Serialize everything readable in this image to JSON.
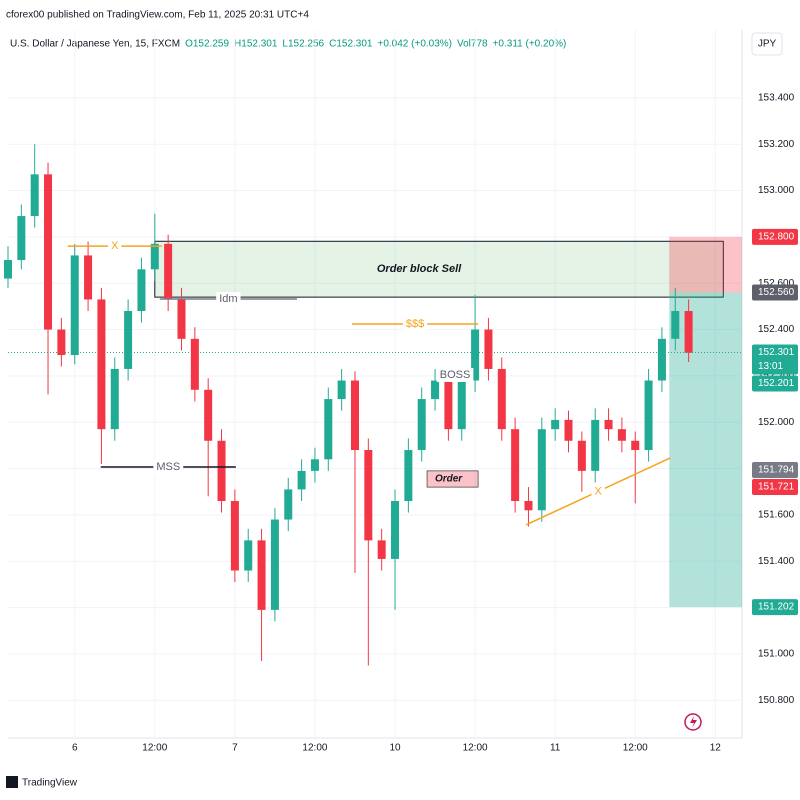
{
  "header": {
    "published": "cforex00 published on TradingView.com, Feb 11, 2025 20:31 UTC+4",
    "symbol": "U.S. Dollar / Japanese Yen, 15, FXCM",
    "legend": [
      "O152.259",
      "H152.301",
      "L152.256",
      "C152.301",
      "+0.042 (+0.03%)",
      "Vol778",
      "+0.311 (+0.20%)"
    ],
    "currency": "JPY",
    "brand": "TradingView"
  },
  "chart_data": {
    "type": "candlestick",
    "up_color": "#22ab94",
    "down_color": "#f23645",
    "xlim": [
      -10,
      100
    ],
    "ylim": [
      150.637,
      153.693
    ],
    "xticks": [
      {
        "value": 0,
        "label": "6"
      },
      {
        "value": 12,
        "label": "12:00"
      },
      {
        "value": 24,
        "label": "7"
      },
      {
        "value": 36,
        "label": "12:00"
      },
      {
        "value": 48,
        "label": "10"
      },
      {
        "value": 60,
        "label": "12:00"
      },
      {
        "value": 72,
        "label": "11"
      },
      {
        "value": 84,
        "label": "12:00"
      },
      {
        "value": 96,
        "label": "12"
      }
    ],
    "yticks": [
      {
        "value": 150.8,
        "label": "150.800"
      },
      {
        "value": 151.0,
        "label": "151.000"
      },
      {
        "value": 151.2,
        "label": "151.200"
      },
      {
        "value": 151.4,
        "label": "151.400"
      },
      {
        "value": 151.6,
        "label": "151.600"
      },
      {
        "value": 151.8,
        "label": "151.800"
      },
      {
        "value": 152.0,
        "label": "152.000"
      },
      {
        "value": 152.2,
        "label": "152.200"
      },
      {
        "value": 152.4,
        "label": "152.400"
      },
      {
        "value": 152.6,
        "label": "152.600"
      },
      {
        "value": 152.8,
        "label": "152.800"
      },
      {
        "value": 153.0,
        "label": "153.000"
      },
      {
        "value": 153.2,
        "label": "153.200"
      },
      {
        "value": 153.4,
        "label": "153.400"
      }
    ],
    "grid": true,
    "x": [
      -10,
      -8,
      -6,
      -4,
      -2,
      0,
      2,
      4,
      6,
      8,
      10,
      12,
      14,
      16,
      18,
      20,
      22,
      24,
      26,
      28,
      30,
      32,
      34,
      36,
      38,
      40,
      42,
      44,
      46,
      48,
      50,
      52,
      54,
      56,
      58,
      60,
      62,
      64,
      66,
      68,
      70,
      72,
      74,
      76,
      78,
      80,
      82,
      84,
      86,
      88,
      90,
      92
    ],
    "open": [
      152.62,
      152.7,
      152.89,
      153.07,
      152.4,
      152.29,
      152.72,
      152.53,
      151.97,
      152.23,
      152.48,
      152.66,
      152.77,
      152.53,
      152.36,
      152.14,
      151.92,
      151.66,
      151.36,
      151.49,
      151.19,
      151.58,
      151.71,
      151.79,
      151.84,
      152.1,
      152.18,
      151.88,
      151.49,
      151.41,
      151.66,
      151.88,
      152.1,
      152.18,
      151.97,
      152.18,
      152.4,
      152.23,
      151.97,
      151.66,
      151.62,
      151.97,
      152.01,
      151.92,
      151.79,
      152.01,
      151.97,
      151.92,
      151.88,
      152.18,
      152.36,
      152.48
    ],
    "high": [
      152.76,
      152.94,
      153.2,
      153.12,
      152.45,
      152.77,
      152.78,
      152.58,
      152.28,
      152.53,
      152.71,
      152.9,
      152.81,
      152.58,
      152.41,
      152.19,
      151.97,
      151.71,
      151.54,
      151.54,
      151.63,
      151.76,
      151.84,
      151.89,
      152.15,
      152.23,
      152.22,
      151.93,
      151.54,
      151.71,
      151.93,
      152.15,
      152.23,
      152.22,
      152.23,
      152.55,
      152.45,
      152.28,
      152.02,
      151.72,
      152.02,
      152.06,
      152.05,
      151.96,
      152.06,
      152.06,
      152.02,
      151.96,
      152.23,
      152.41,
      152.58,
      152.53
    ],
    "low": [
      152.58,
      152.66,
      152.84,
      152.12,
      152.24,
      152.25,
      152.48,
      151.82,
      151.92,
      152.18,
      152.43,
      152.61,
      152.48,
      152.31,
      152.09,
      151.68,
      151.61,
      151.31,
      151.31,
      150.97,
      151.14,
      151.53,
      151.66,
      151.74,
      151.79,
      152.05,
      151.35,
      150.95,
      151.36,
      151.19,
      151.61,
      151.83,
      152.05,
      151.92,
      151.92,
      152.13,
      152.18,
      151.92,
      151.61,
      151.55,
      151.57,
      151.92,
      151.87,
      151.7,
      151.74,
      151.92,
      151.87,
      151.65,
      151.83,
      152.13,
      152.31,
      152.26
    ],
    "close": [
      152.7,
      152.89,
      153.07,
      152.4,
      152.29,
      152.72,
      152.53,
      151.97,
      152.23,
      152.48,
      152.66,
      152.77,
      152.53,
      152.36,
      152.14,
      151.92,
      151.66,
      151.36,
      151.49,
      151.19,
      151.58,
      151.71,
      151.79,
      151.84,
      152.1,
      152.18,
      151.88,
      151.49,
      151.41,
      151.66,
      151.88,
      152.1,
      152.18,
      151.97,
      152.18,
      152.4,
      152.23,
      151.97,
      151.66,
      151.62,
      151.97,
      152.01,
      151.92,
      151.79,
      152.01,
      151.97,
      151.92,
      151.88,
      152.18,
      152.36,
      152.48,
      152.3
    ],
    "current_price": 152.301,
    "zone": {
      "label": "Order block Sell",
      "x": [
        12,
        97.2
      ],
      "y": [
        152.54,
        152.781
      ]
    },
    "position": {
      "x": [
        89.1,
        100
      ],
      "entry": 152.56,
      "stop": 152.8,
      "target": 151.202
    },
    "order": {
      "label": "Order",
      "x": [
        52.8,
        60.45
      ],
      "y": [
        151.72,
        151.79
      ]
    },
    "lines": [
      {
        "label": "X",
        "color": "#f7a21b",
        "x": [
          -1.05,
          13.05
        ],
        "y": [
          152.76,
          152.76
        ]
      },
      {
        "label": "Idm",
        "color": "#787b86",
        "x": [
          12.75,
          33.3
        ],
        "y": [
          152.532,
          152.532
        ]
      },
      {
        "label": "MSS",
        "color": "#131722",
        "x": [
          3.9,
          24.15
        ],
        "y": [
          151.807,
          151.807
        ]
      },
      {
        "label": "$$$",
        "color": "#f7a21b",
        "x": [
          41.55,
          60.45
        ],
        "y": [
          152.424,
          152.424
        ]
      },
      {
        "label": "BOSS",
        "color": "#787b86",
        "x": [
          54.75,
          59.25
        ],
        "y": [
          152.204,
          152.204
        ]
      },
      {
        "label": "X",
        "color": "#f7a21b",
        "x": [
          67.65,
          89.25
        ],
        "y": [
          151.557,
          151.846
        ]
      }
    ],
    "price_tags": [
      {
        "value": 152.8,
        "label": "152.800",
        "color": "#f23645"
      },
      {
        "value": 152.56,
        "label": "152.560",
        "color": "#5d606b"
      },
      {
        "value": 152.301,
        "label": "152.301",
        "sub": "13:01",
        "color": "#22ab94"
      },
      {
        "value": 152.201,
        "label": "152.201",
        "color": "#22ab94"
      },
      {
        "value": 151.794,
        "label": "151.794",
        "color": "#787b86"
      },
      {
        "value": 151.721,
        "label": "151.721",
        "color": "#f23645"
      },
      {
        "value": 151.202,
        "label": "151.202",
        "color": "#22ab94"
      }
    ]
  }
}
